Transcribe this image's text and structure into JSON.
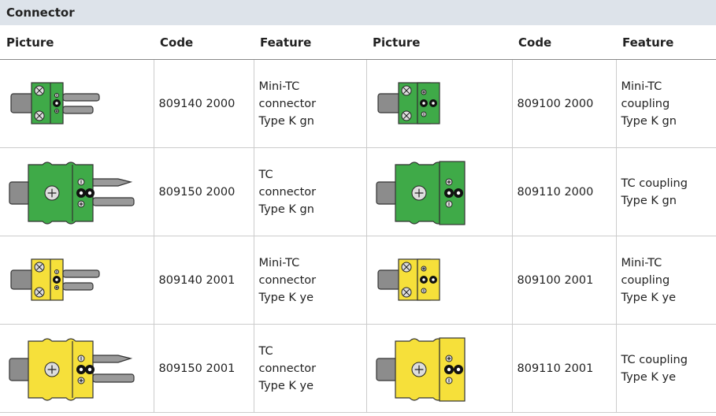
{
  "table": {
    "title": "Connector",
    "headers": [
      "Picture",
      "Code",
      "Feature",
      "Picture",
      "Code",
      "Feature"
    ],
    "rows": [
      [
        "809140 2000",
        "Mini-TC\nconnector\nType K gn",
        "809100 2000",
        "Mini-TC\ncoupling\nType K gn"
      ],
      [
        "809150 2000",
        "TC\nconnector\nType K gn",
        "809110 2000",
        "TC coupling\nType K gn"
      ],
      [
        "809140 2001",
        "Mini-TC\nconnector\nType K ye",
        "809100 2001",
        "Mini-TC\ncoupling\nType K ye"
      ],
      [
        "809150 2001",
        "TC\nconnector\nType K ye",
        "809110 2001",
        "TC coupling\nType K ye"
      ]
    ]
  }
}
